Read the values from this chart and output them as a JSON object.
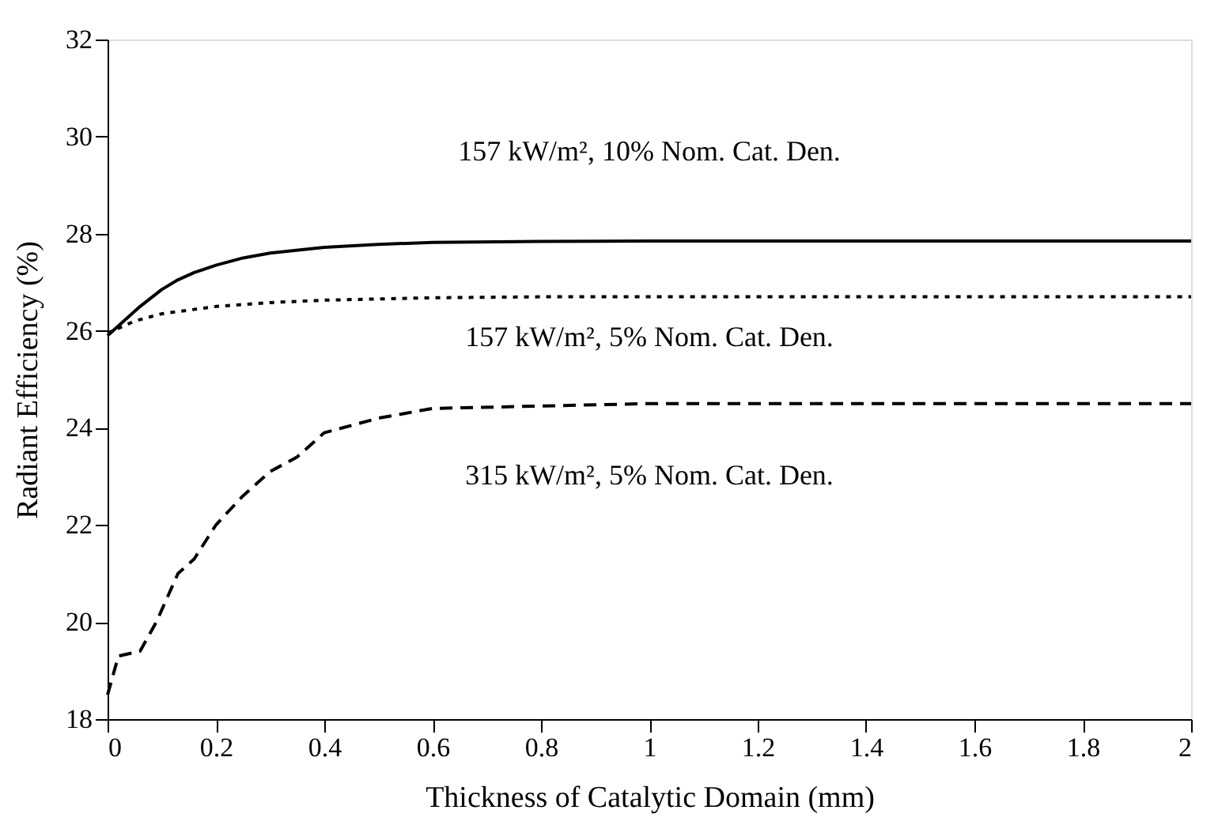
{
  "chart_data": {
    "type": "line",
    "xlabel": "Thickness of Catalytic Domain (mm)",
    "ylabel": "Radiant Efficiency (%)",
    "xlim": [
      0,
      2
    ],
    "xticks": [
      {
        "value": 0,
        "label": "0"
      },
      0.2,
      0.4,
      0.6,
      0.8,
      {
        "value": 1,
        "label": "1"
      },
      1.2,
      1.4,
      1.6,
      1.8,
      {
        "value": 2,
        "label": "2"
      }
    ],
    "ylim": [
      18,
      32
    ],
    "yticks": [
      18,
      20,
      22,
      24,
      26,
      28,
      30,
      32
    ],
    "grid": false,
    "marker": "none",
    "series": [
      {
        "color": "#000000",
        "line_style": "solid",
        "x": [
          0,
          0.03,
          0.06,
          0.1,
          0.13,
          0.16,
          0.2,
          0.25,
          0.3,
          0.4,
          0.5,
          0.6,
          0.8,
          1.0,
          1.5,
          2.0
        ],
        "values": [
          25.9,
          26.2,
          26.5,
          26.85,
          27.05,
          27.2,
          27.35,
          27.5,
          27.6,
          27.72,
          27.78,
          27.82,
          27.84,
          27.85,
          27.85,
          27.85
        ]
      },
      {
        "color": "#000000",
        "line_style": "dotted",
        "x": [
          0,
          0.05,
          0.1,
          0.2,
          0.3,
          0.4,
          0.6,
          0.8,
          1.0,
          1.5,
          2.0
        ],
        "values": [
          25.95,
          26.2,
          26.35,
          26.5,
          26.58,
          26.63,
          26.68,
          26.7,
          26.7,
          26.7,
          26.7
        ]
      },
      {
        "color": "#000000",
        "line_style": "dashed",
        "x": [
          0,
          0.02,
          0.06,
          0.09,
          0.13,
          0.16,
          0.2,
          0.25,
          0.3,
          0.35,
          0.4,
          0.5,
          0.6,
          0.8,
          1.0,
          1.5,
          2.0
        ],
        "values": [
          18.5,
          19.3,
          19.4,
          20.0,
          21.0,
          21.3,
          22.0,
          22.6,
          23.1,
          23.4,
          23.9,
          24.2,
          24.4,
          24.45,
          24.5,
          24.5,
          24.5
        ]
      }
    ],
    "annotations": [
      "157 kW/m², 10% Nom. Cat. Den.",
      "157 kW/m², 5% Nom. Cat. Den.",
      "315 kW/m², 5% Nom. Cat. Den."
    ]
  }
}
